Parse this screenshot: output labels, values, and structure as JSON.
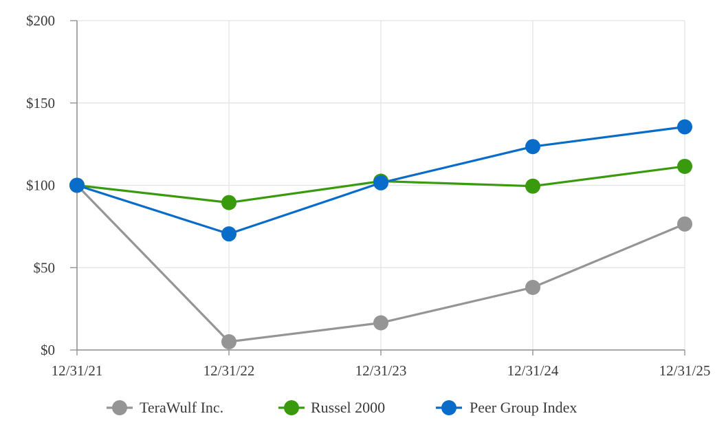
{
  "chart_data": {
    "type": "line",
    "title": "",
    "xlabel": "",
    "ylabel": "",
    "categories": [
      "12/31/21",
      "12/31/22",
      "12/31/23",
      "12/31/24",
      "12/31/25"
    ],
    "ylim": [
      0,
      200
    ],
    "yticks": [
      0,
      50,
      100,
      150,
      200
    ],
    "ytick_labels": [
      "$0",
      "$50",
      "$100",
      "$150",
      "$200"
    ],
    "grid": true,
    "legend_position": "bottom",
    "series": [
      {
        "name": "TeraWulf Inc.",
        "color": "#959595",
        "values": [
          100,
          5,
          16.5,
          38,
          76.5
        ]
      },
      {
        "name": "Russel 2000",
        "color": "#3a9a0e",
        "values": [
          100,
          89.5,
          102.5,
          99.5,
          111.5
        ]
      },
      {
        "name": "Peer Group Index",
        "color": "#0a6cc9",
        "values": [
          100,
          70.5,
          101.5,
          123.5,
          135.5
        ]
      }
    ]
  }
}
